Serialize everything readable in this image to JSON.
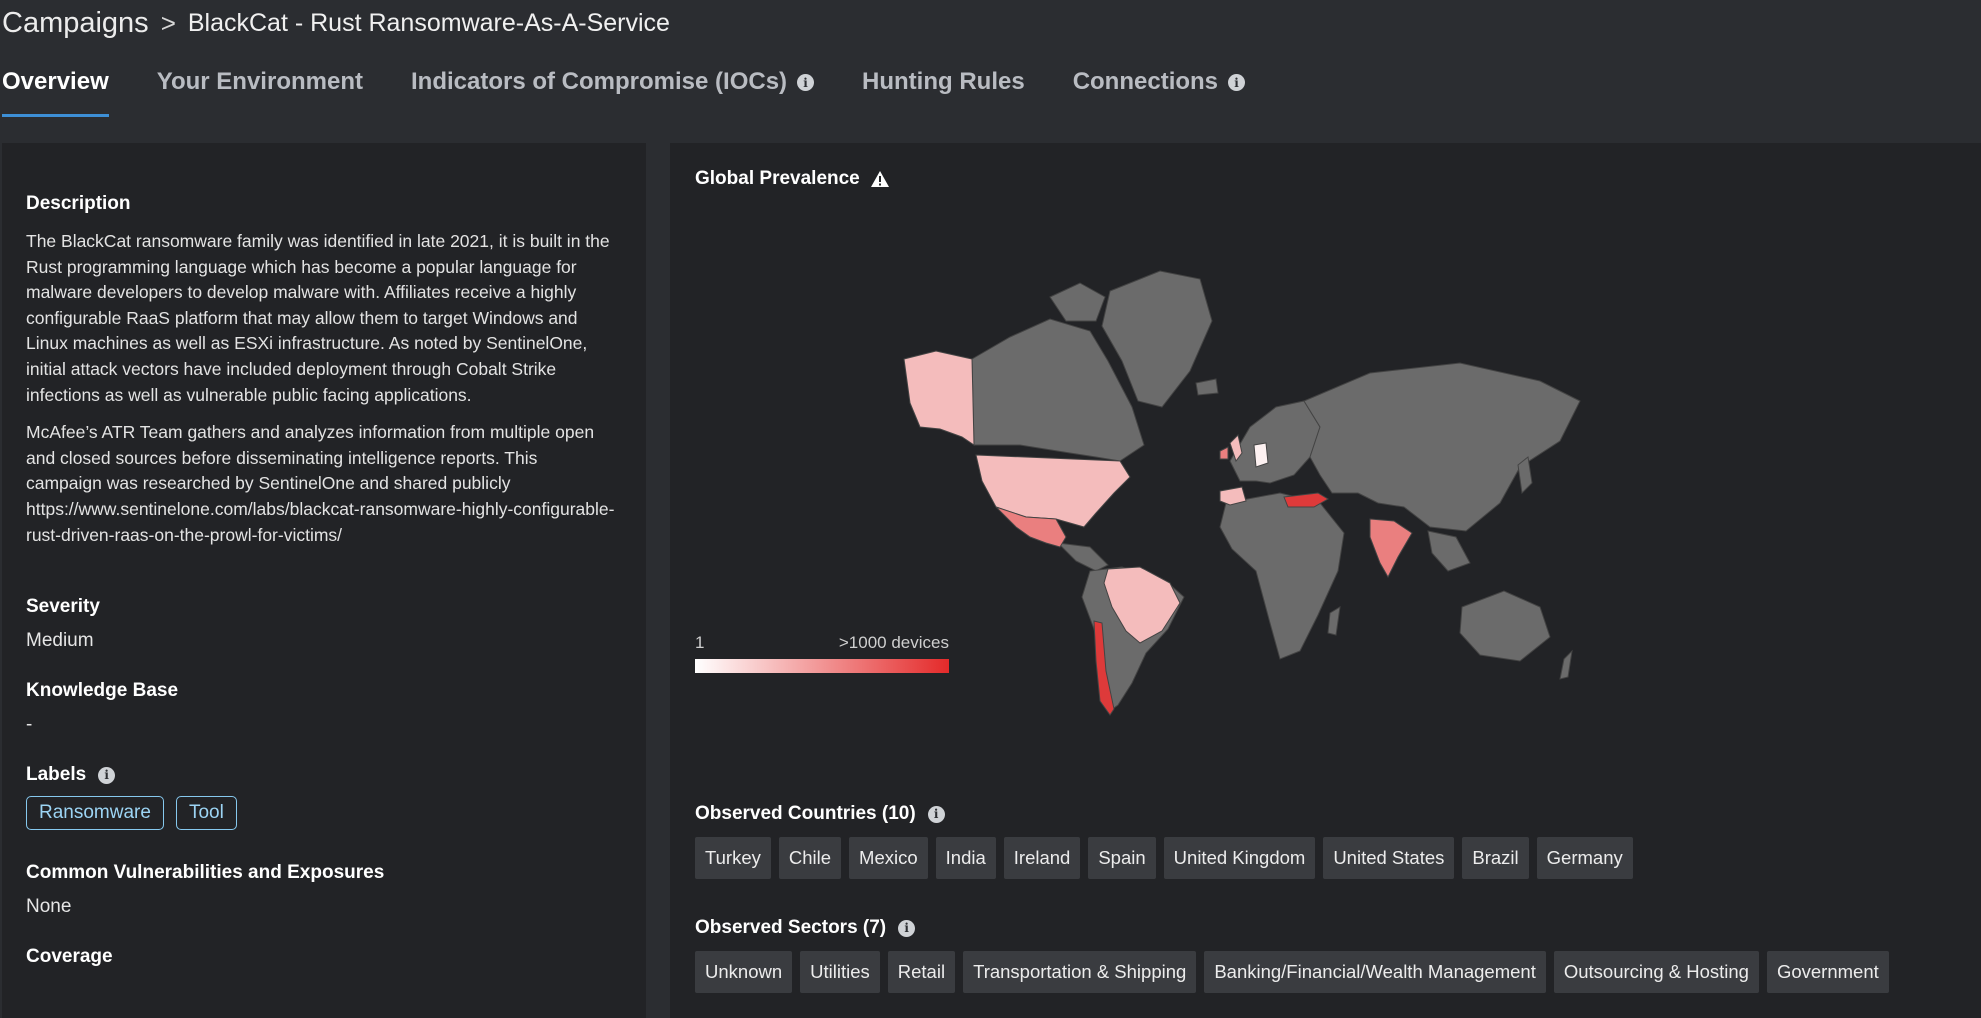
{
  "breadcrumb": {
    "root": "Campaigns",
    "separator": ">",
    "current": "BlackCat - Rust Ransomware-As-A-Service"
  },
  "tabs": [
    {
      "label": "Overview",
      "active": true,
      "info": false
    },
    {
      "label": "Your Environment",
      "active": false,
      "info": false
    },
    {
      "label": "Indicators of Compromise (IOCs)",
      "active": false,
      "info": true
    },
    {
      "label": "Hunting Rules",
      "active": false,
      "info": false
    },
    {
      "label": "Connections",
      "active": false,
      "info": true
    }
  ],
  "left": {
    "description_title": "Description",
    "description_p1": "The BlackCat ransomware family was identified in late 2021, it is built in the Rust programming language which has become a popular language for malware developers to develop malware with. Affiliates receive a highly configurable RaaS platform that may allow them to target Windows and Linux machines as well as ESXi infrastructure. As noted by SentinelOne, initial attack vectors have included deployment through Cobalt Strike infections as well as vulnerable public facing applications.",
    "description_p2": "McAfee’s ATR Team gathers and analyzes information from multiple open and closed sources before disseminating intelligence reports. This campaign was researched by SentinelOne and shared publicly https://www.sentinelone.com/labs/blackcat-ransomware-highly-configurable-rust-driven-raas-on-the-prowl-for-victims/",
    "severity_title": "Severity",
    "severity_value": "Medium",
    "kb_title": "Knowledge Base",
    "kb_value": "-",
    "labels_title": "Labels",
    "labels": [
      "Ransomware",
      "Tool"
    ],
    "cve_title": "Common Vulnerabilities and Exposures",
    "cve_value": "None",
    "coverage_title": "Coverage"
  },
  "right": {
    "global_prevalence_title": "Global Prevalence",
    "legend_min": "1",
    "legend_max": ">1000 devices",
    "legend_colors": {
      "min": "#ffffff",
      "max": "#e42a2a"
    },
    "countries_title": "Observed Countries (10)",
    "countries": [
      "Turkey",
      "Chile",
      "Mexico",
      "India",
      "Ireland",
      "Spain",
      "United Kingdom",
      "United States",
      "Brazil",
      "Germany"
    ],
    "sectors_title": "Observed Sectors (7)",
    "sectors": [
      "Unknown",
      "Utilities",
      "Retail",
      "Transportation & Shipping",
      "Banking/Financial/Wealth Management",
      "Outsourcing & Hosting",
      "Government"
    ]
  },
  "colors": {
    "accent": "#3d8fd6",
    "panel": "#222326",
    "map_land": "#6b6b6b",
    "map_low": "#f4bcbc",
    "map_mid": "#ea7f7f",
    "map_high": "#de3a3a"
  }
}
